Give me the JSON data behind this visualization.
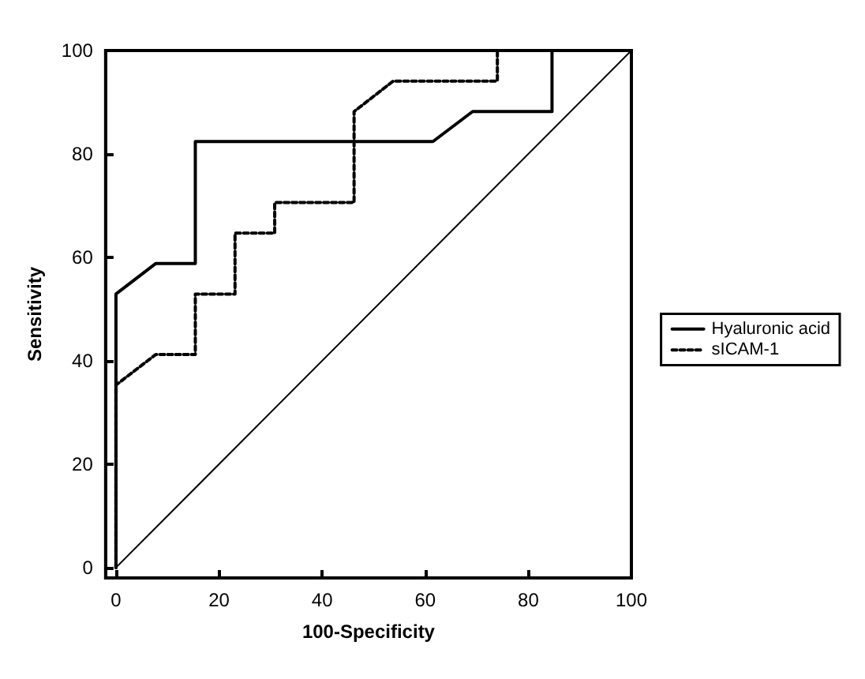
{
  "chart_data": {
    "type": "line",
    "xlabel": "100-Specificity",
    "ylabel": "Sensitivity",
    "xlim": [
      -2,
      100
    ],
    "ylim": [
      -2,
      100
    ],
    "xticks": [
      0,
      20,
      40,
      60,
      80,
      100
    ],
    "yticks": [
      0,
      20,
      40,
      60,
      80,
      100
    ],
    "grid": false,
    "legend": "right",
    "marker": "none",
    "series": [
      {
        "name": "Hyaluronic acid",
        "color": "#000000",
        "line_style": "solid",
        "x": [
          0,
          0,
          7.7,
          15.4,
          15.4,
          61.5,
          69.2,
          84.6,
          84.6,
          100
        ],
        "values": [
          0,
          52.9,
          58.8,
          58.8,
          82.4,
          82.4,
          88.2,
          88.2,
          100,
          100
        ]
      },
      {
        "name": "sICAM-1",
        "color": "#000000",
        "line_style": "dotted",
        "x": [
          0,
          0,
          7.7,
          15.4,
          15.4,
          23.1,
          23.1,
          30.8,
          30.8,
          46.2,
          46.2,
          53.8,
          74,
          74,
          100
        ],
        "values": [
          0,
          35.3,
          41.2,
          41.2,
          52.9,
          52.9,
          64.7,
          64.7,
          70.6,
          70.6,
          88.2,
          94.1,
          94.1,
          100,
          100
        ]
      },
      {
        "color": "#000000",
        "line_style": "solid",
        "x": [
          0,
          100
        ],
        "values": [
          0,
          100
        ]
      }
    ]
  }
}
